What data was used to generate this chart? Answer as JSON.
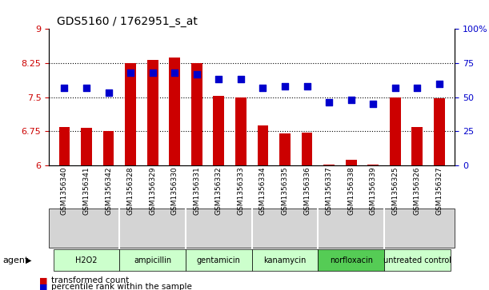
{
  "title": "GDS5160 / 1762951_s_at",
  "samples": [
    "GSM1356340",
    "GSM1356341",
    "GSM1356342",
    "GSM1356328",
    "GSM1356329",
    "GSM1356330",
    "GSM1356331",
    "GSM1356332",
    "GSM1356333",
    "GSM1356334",
    "GSM1356335",
    "GSM1356336",
    "GSM1356337",
    "GSM1356338",
    "GSM1356339",
    "GSM1356325",
    "GSM1356326",
    "GSM1356327"
  ],
  "transformed_count": [
    6.85,
    6.82,
    6.76,
    8.25,
    8.32,
    8.38,
    8.25,
    7.52,
    7.5,
    6.88,
    6.7,
    6.72,
    6.01,
    6.12,
    6.01,
    7.5,
    6.85,
    7.48
  ],
  "percentile_rank": [
    57,
    57,
    53,
    68,
    68,
    68,
    67,
    63,
    63,
    57,
    58,
    58,
    46,
    48,
    45,
    57,
    57,
    60
  ],
  "groups": [
    {
      "name": "H2O2",
      "start": 0,
      "end": 3,
      "color": "#ccffcc"
    },
    {
      "name": "ampicillin",
      "start": 3,
      "end": 6,
      "color": "#ccffcc"
    },
    {
      "name": "gentamicin",
      "start": 6,
      "end": 9,
      "color": "#ccffcc"
    },
    {
      "name": "kanamycin",
      "start": 9,
      "end": 12,
      "color": "#ccffcc"
    },
    {
      "name": "norfloxacin",
      "start": 12,
      "end": 15,
      "color": "#55cc55"
    },
    {
      "name": "untreated control",
      "start": 15,
      "end": 18,
      "color": "#ccffcc"
    }
  ],
  "ylim_left": [
    6,
    9
  ],
  "ylim_right": [
    0,
    100
  ],
  "yticks_left": [
    6,
    6.75,
    7.5,
    8.25,
    9
  ],
  "yticks_right": [
    0,
    25,
    50,
    75,
    100
  ],
  "ytick_labels_right": [
    "0",
    "25",
    "50",
    "75",
    "100%"
  ],
  "bar_color": "#cc0000",
  "dot_color": "#0000cc",
  "background_color": "#ffffff",
  "bar_width": 0.5,
  "dot_size": 28,
  "xlim": [
    -0.7,
    17.7
  ]
}
